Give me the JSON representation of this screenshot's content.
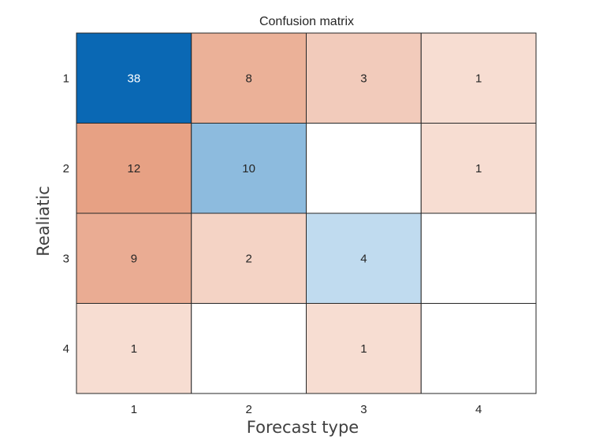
{
  "chart_data": {
    "type": "heatmap",
    "title": "Confusion matrix",
    "xlabel": "Forecast type",
    "ylabel": "Realiatic",
    "x_categories": [
      "1",
      "2",
      "3",
      "4"
    ],
    "y_categories": [
      "1",
      "2",
      "3",
      "4"
    ],
    "values": [
      [
        38,
        8,
        3,
        1
      ],
      [
        12,
        10,
        null,
        1
      ],
      [
        9,
        2,
        4,
        null
      ],
      [
        1,
        null,
        1,
        null
      ]
    ],
    "colors": {
      "diagonal_max": "#0a68b4",
      "diagonal_low": "#c7dff1",
      "offdiag_max": "#e7a184",
      "offdiag_low": "#f7ddd2",
      "empty": "#ffffff",
      "grid": "#262626",
      "label_dark": "#262626",
      "label_light": "#ffffff"
    }
  }
}
